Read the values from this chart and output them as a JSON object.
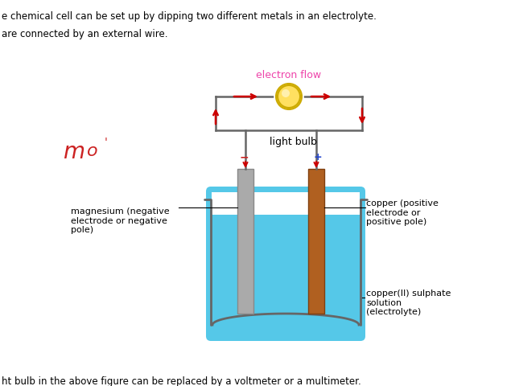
{
  "bg_color": "#ffffff",
  "text_top1": "e chemical cell can be set up by dipping two different metals in an electrolyte.",
  "text_top2": "are connected by an external wire.",
  "text_bottom": "ht bulb in the above figure can be replaced by a voltmeter or a multimeter.",
  "electron_flow_label": "electron flow",
  "electron_flow_color": "#ee44aa",
  "light_bulb_label": "light bulb",
  "light_bulb_color": "#f0c020",
  "magnesium_label": "magnesium (negative\nelectrode or negative\npole)",
  "copper_label": "copper (positive\nelectrode or\npositive pole)",
  "electrolyte_label": "copper(II) sulphate\nsolution\n(electrolyte)",
  "beaker_fill": "#55c8e8",
  "beaker_outline": "#666666",
  "wire_color": "#666666",
  "mg_electrode_color": "#aaaaaa",
  "mg_electrode_edge": "#888888",
  "cu_electrode_color": "#b06020",
  "cu_electrode_edge": "#804010",
  "arrow_color": "#cc0000",
  "minus_color": "#cc2222",
  "plus_color": "#2244cc",
  "handwriting_color": "#cc2222",
  "font_size_text": 8.5,
  "font_size_label": 8,
  "font_size_flow": 9,
  "font_size_bulb": 9
}
